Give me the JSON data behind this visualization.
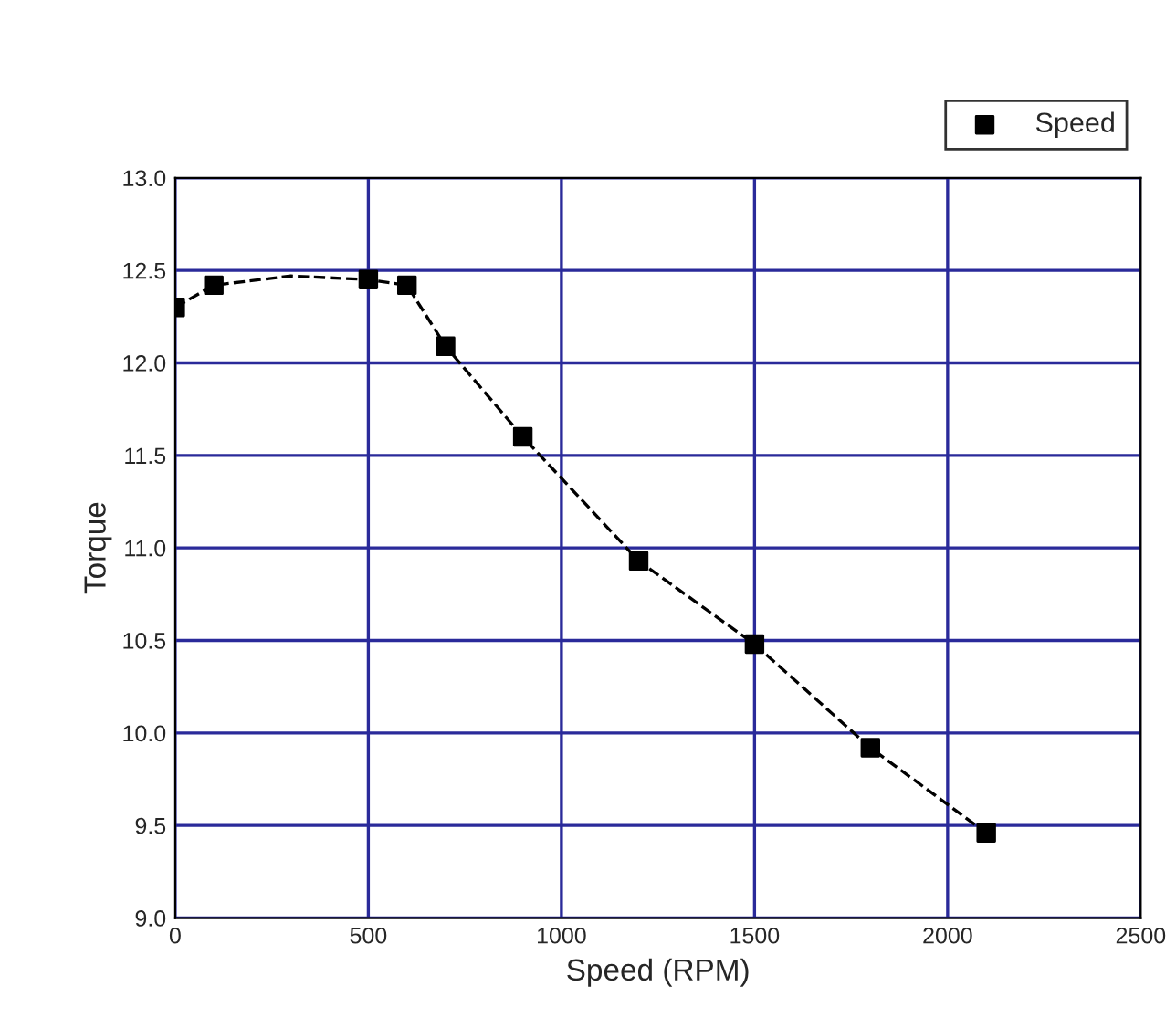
{
  "chart_data": {
    "type": "scatter",
    "xlabel": "Speed (RPM)",
    "ylabel": "Torque",
    "xlim": [
      0,
      2500
    ],
    "xticks": [
      0,
      500,
      1000,
      1500,
      2000,
      2500
    ],
    "ylim": [
      9.0,
      13.0
    ],
    "yticks": [
      {
        "value": 9,
        "label": "9.0"
      },
      {
        "value": 9.5,
        "label": "9.5"
      },
      {
        "value": 10,
        "label": "10.0"
      },
      {
        "value": 10.5,
        "label": "10.5"
      },
      {
        "value": 11,
        "label": "11.0"
      },
      {
        "value": 11.5,
        "label": "11.5"
      },
      {
        "value": 12,
        "label": "12.0"
      },
      {
        "value": 12.5,
        "label": "12.5"
      },
      {
        "value": 13,
        "label": "13.0"
      }
    ],
    "grid": true,
    "legend": "top right",
    "series": [
      {
        "name": "Speed",
        "color": "#000000",
        "marker": "square",
        "x": [
          0,
          100,
          500,
          600,
          700,
          900,
          1200,
          1500,
          1800,
          2100
        ],
        "values": [
          12.3,
          12.42,
          12.45,
          12.42,
          12.09,
          11.6,
          10.93,
          10.48,
          9.92,
          9.46
        ]
      },
      {
        "type": "line",
        "color": "#000000",
        "line_style": "dashed",
        "marker": "none",
        "x": [
          0,
          100,
          300,
          500,
          600,
          700,
          900,
          1200,
          1500,
          1800,
          2100
        ],
        "values": [
          12.3,
          12.42,
          12.47,
          12.45,
          12.42,
          12.09,
          11.6,
          10.93,
          10.48,
          9.92,
          9.46
        ]
      }
    ]
  }
}
